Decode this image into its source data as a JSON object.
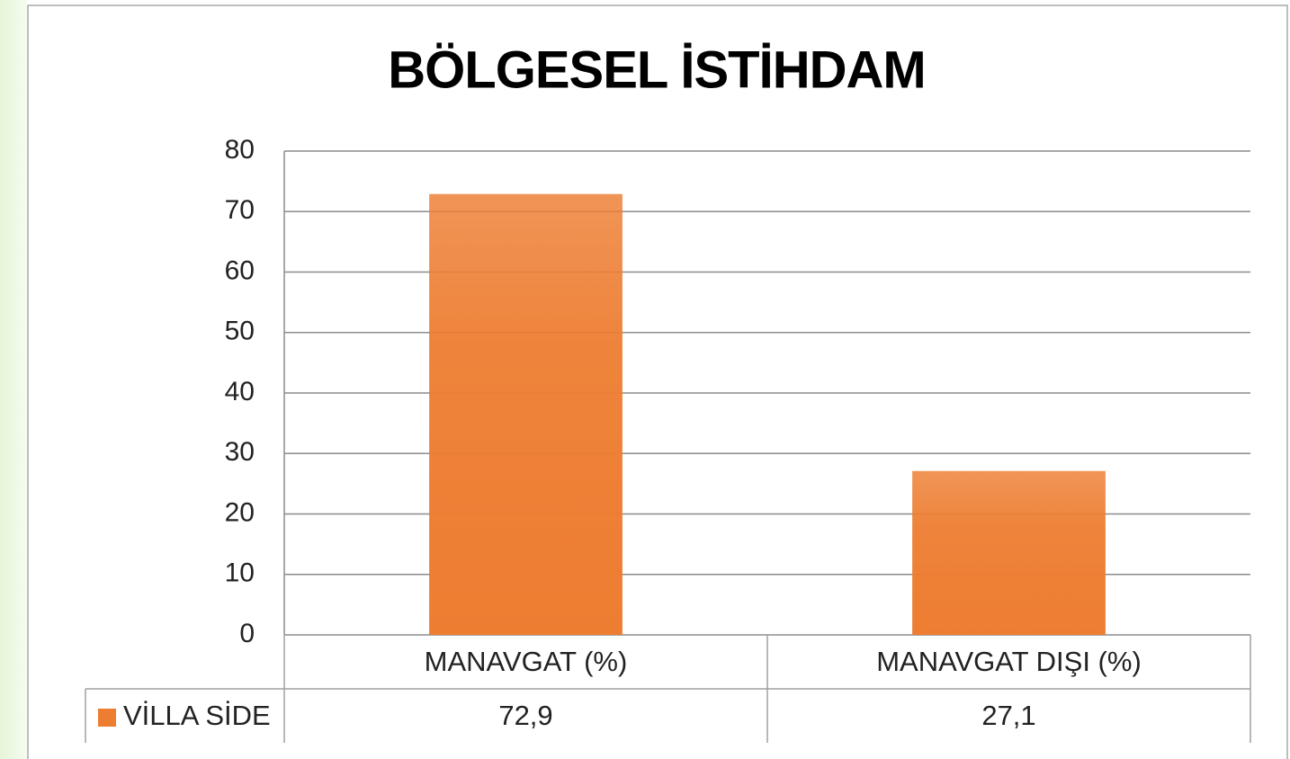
{
  "chart_data": {
    "type": "bar",
    "title": "BÖLGESEL İSTİHDAM",
    "categories": [
      "MANAVGAT (%)",
      "MANAVGAT DIŞI (%)"
    ],
    "series": [
      {
        "name": "VİLLA SİDE",
        "color": "#ed7d31",
        "values": [
          72.9,
          27.1
        ],
        "value_labels": [
          "72,9",
          "27,1"
        ]
      }
    ],
    "ylim": [
      0,
      80
    ],
    "yticks": [
      0,
      10,
      20,
      30,
      40,
      50,
      60,
      70,
      80
    ],
    "grid": true,
    "legend": "data-table"
  }
}
